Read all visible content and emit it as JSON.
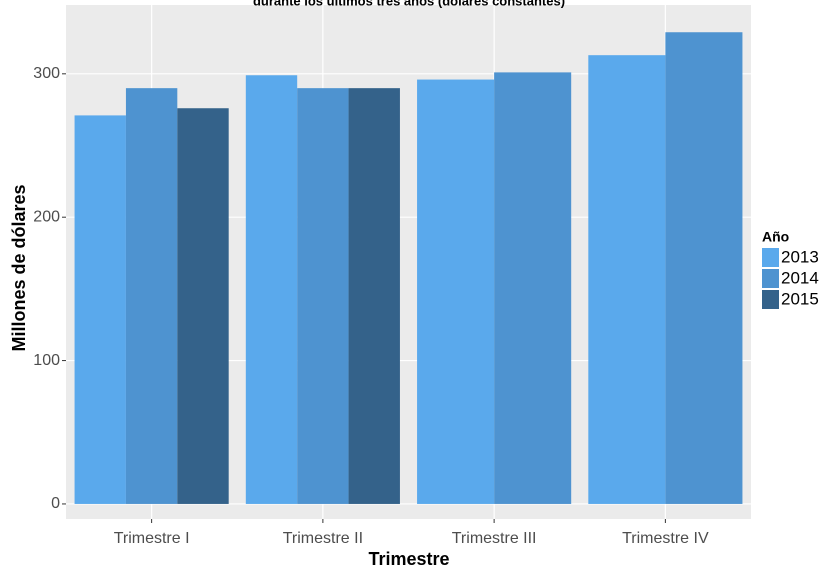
{
  "chart_data": {
    "type": "bar",
    "title": "durante los últimos tres años (dólares constantes)",
    "x_label": "Trimestre",
    "y_label": "Millones de dólares",
    "categories": [
      "Trimestre I",
      "Trimestre II",
      "Trimestre III",
      "Trimestre IV"
    ],
    "series": [
      {
        "name": "2013",
        "color": "#5aa9ec",
        "values": [
          271,
          299,
          296,
          313
        ]
      },
      {
        "name": "2014",
        "color": "#4e93d0",
        "values": [
          290,
          290,
          301,
          329
        ]
      },
      {
        "name": "2015",
        "color": "#34628a",
        "values": [
          276,
          290,
          null,
          null
        ]
      }
    ],
    "legend_title": "Año",
    "legend": "right",
    "ylim": [
      -10.5,
      348
    ],
    "yticks": [
      0,
      100,
      200,
      300
    ],
    "grid": true
  }
}
